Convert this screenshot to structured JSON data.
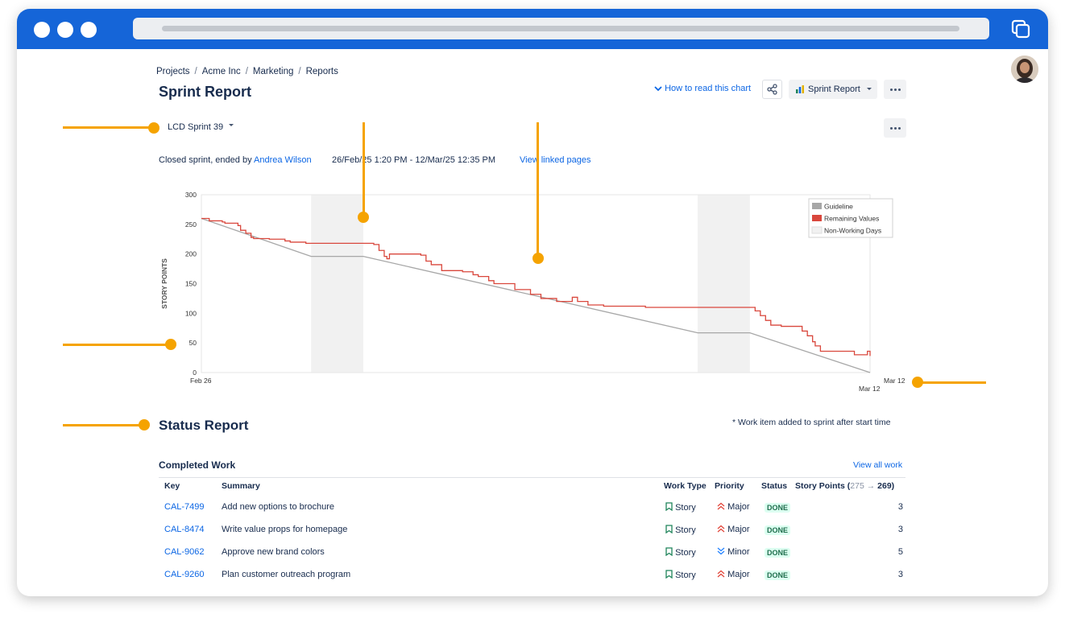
{
  "breadcrumb": [
    "Projects",
    "Acme Inc",
    "Marketing",
    "Reports"
  ],
  "page_title": "Sprint Report",
  "header": {
    "how_to_label": "How to read this chart",
    "report_select": "Sprint Report"
  },
  "sprint": {
    "name": "LCD Sprint 39",
    "closed_prefix": "Closed sprint, ended by",
    "owner": "Andrea Wilson",
    "date_range": "26/Feb/25 1:20 PM - 12/Mar/25 12:35 PM",
    "linked_pages": "View linked pages"
  },
  "chart_data": {
    "type": "line",
    "ylabel": "STORY POINTS",
    "ylim": [
      0,
      300
    ],
    "yticks": [
      "0",
      "50",
      "100",
      "150",
      "200",
      "250",
      "300"
    ],
    "x_start_label": "Feb 26",
    "x_end_label": "Mar 12",
    "x_end_label_right": "Mar 12",
    "non_working_days": [
      [
        2.1,
        3.1
      ],
      [
        9.5,
        10.5
      ]
    ],
    "legend": [
      "Guideline",
      "Remaining Values",
      "Non-Working Days"
    ],
    "colors": {
      "guideline": "#a7a7a7",
      "remaining": "#d9473c",
      "non_working": "#f1f1f1"
    },
    "series": [
      {
        "name": "Guideline",
        "points": [
          [
            0,
            260
          ],
          [
            2.1,
            196
          ],
          [
            3.1,
            196
          ],
          [
            9.5,
            67
          ],
          [
            10.5,
            67
          ],
          [
            12.8,
            0
          ]
        ]
      },
      {
        "name": "Remaining Values",
        "step": true,
        "points": [
          [
            0,
            260
          ],
          [
            0.15,
            256
          ],
          [
            0.4,
            254
          ],
          [
            0.45,
            252
          ],
          [
            0.7,
            248
          ],
          [
            0.75,
            240
          ],
          [
            0.85,
            235
          ],
          [
            0.95,
            228
          ],
          [
            1.0,
            226
          ],
          [
            1.3,
            225
          ],
          [
            1.6,
            222
          ],
          [
            1.7,
            220
          ],
          [
            2.0,
            218
          ],
          [
            2.1,
            218
          ],
          [
            3.1,
            218
          ],
          [
            3.3,
            216
          ],
          [
            3.4,
            206
          ],
          [
            3.5,
            196
          ],
          [
            3.55,
            192
          ],
          [
            3.6,
            200
          ],
          [
            4.2,
            198
          ],
          [
            4.3,
            188
          ],
          [
            4.4,
            182
          ],
          [
            4.6,
            172
          ],
          [
            5.0,
            170
          ],
          [
            5.2,
            165
          ],
          [
            5.3,
            162
          ],
          [
            5.5,
            155
          ],
          [
            5.6,
            150
          ],
          [
            6.0,
            140
          ],
          [
            6.3,
            132
          ],
          [
            6.5,
            125
          ],
          [
            6.8,
            120
          ],
          [
            7.1,
            127
          ],
          [
            7.2,
            120
          ],
          [
            7.4,
            114
          ],
          [
            7.7,
            112
          ],
          [
            8.3,
            112
          ],
          [
            8.5,
            110
          ],
          [
            9.5,
            110
          ],
          [
            10.5,
            110
          ],
          [
            10.6,
            104
          ],
          [
            10.7,
            96
          ],
          [
            10.8,
            88
          ],
          [
            10.9,
            80
          ],
          [
            11.1,
            78
          ],
          [
            11.4,
            78
          ],
          [
            11.5,
            70
          ],
          [
            11.6,
            62
          ],
          [
            11.7,
            52
          ],
          [
            11.75,
            45
          ],
          [
            11.85,
            36
          ],
          [
            12.4,
            36
          ],
          [
            12.5,
            30
          ],
          [
            12.7,
            30
          ],
          [
            12.75,
            36
          ],
          [
            12.8,
            28
          ]
        ]
      }
    ]
  },
  "status_report": {
    "title": "Status Report",
    "note": "* Work item added to sprint after start time",
    "completed_title": "Completed Work",
    "view_all": "View all work",
    "columns": {
      "key": "Key",
      "summary": "Summary",
      "work_type": "Work Type",
      "priority": "Priority",
      "status": "Status",
      "points_prefix": "Story Points (",
      "points_from": "275",
      "points_arrow": "→",
      "points_to": "269)"
    },
    "rows": [
      {
        "key": "CAL-7499",
        "summary": "Add new options to brochure",
        "type": "Story",
        "priority": "Major",
        "status": "DONE",
        "points": "3"
      },
      {
        "key": "CAL-8474",
        "summary": "Write value props for homepage",
        "type": "Story",
        "priority": "Major",
        "status": "DONE",
        "points": "3"
      },
      {
        "key": "CAL-9062",
        "summary": "Approve new brand colors",
        "type": "Story",
        "priority": "Minor",
        "status": "DONE",
        "points": "5"
      },
      {
        "key": "CAL-9260",
        "summary": "Plan customer outreach program",
        "type": "Story",
        "priority": "Major",
        "status": "DONE",
        "points": "3"
      }
    ]
  }
}
